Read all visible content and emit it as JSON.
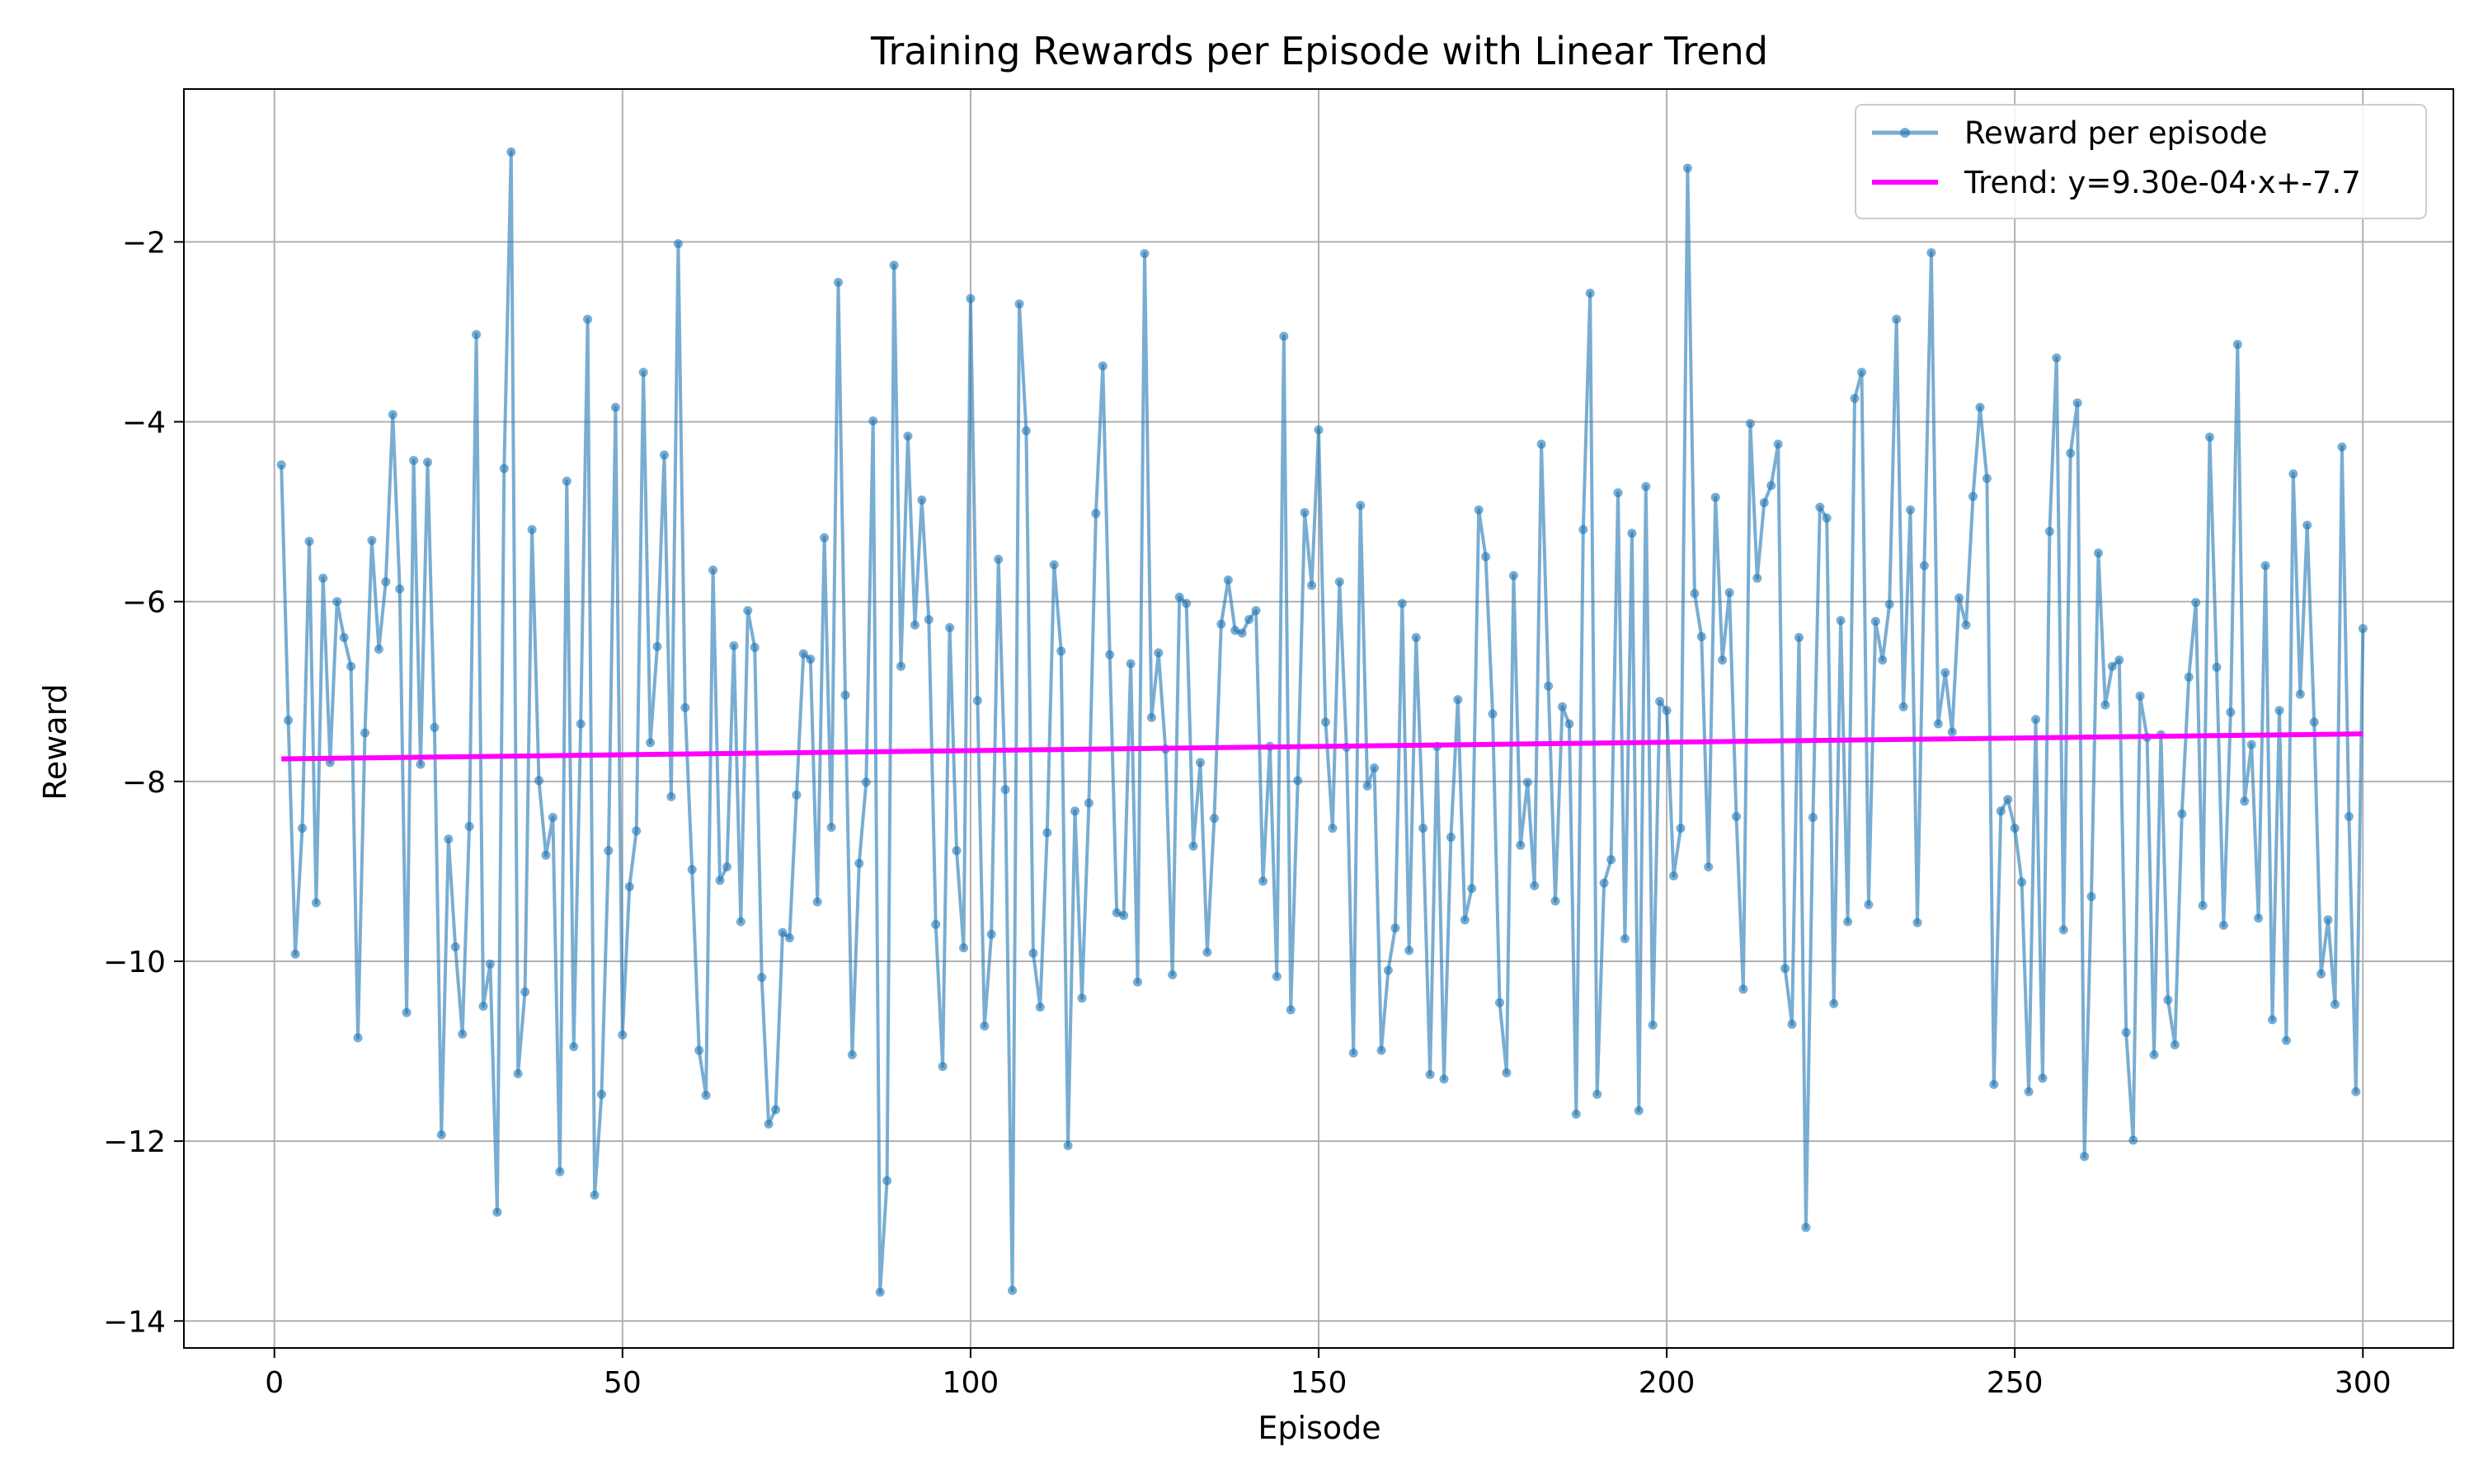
{
  "chart_data": {
    "type": "line",
    "title": "Training Rewards per Episode with Linear Trend",
    "xlabel": "Episode",
    "ylabel": "Reward",
    "xlim": [
      -13,
      313
    ],
    "ylim": [
      -14.3,
      -0.3
    ],
    "x_ticks": [
      0,
      50,
      100,
      150,
      200,
      250,
      300
    ],
    "y_ticks": [
      -14,
      -12,
      -10,
      -8,
      -6,
      -4,
      -2
    ],
    "grid": true,
    "legend_position": "top-right",
    "series": [
      {
        "name": "Reward per episode",
        "kind": "line-with-markers",
        "color": "#1f77b4",
        "x_start": 1,
        "x_step": 1,
        "values": [
          -4.48,
          -7.32,
          -9.92,
          -8.52,
          -5.33,
          -9.35,
          -5.74,
          -7.79,
          -6.0,
          -6.4,
          -6.72,
          -10.85,
          -7.46,
          -5.32,
          -6.53,
          -5.78,
          -3.92,
          -5.86,
          -10.57,
          -4.43,
          -7.81,
          -4.45,
          -7.4,
          -11.93,
          -8.64,
          -9.84,
          -10.81,
          -8.5,
          -3.03,
          -10.5,
          -10.03,
          -12.79,
          -4.52,
          -1.0,
          -11.25,
          -10.34,
          -5.2,
          -7.99,
          -8.82,
          -8.4,
          -12.34,
          -4.66,
          -10.95,
          -7.36,
          -2.86,
          -12.6,
          -11.48,
          -8.77,
          -3.84,
          -10.82,
          -9.17,
          -8.55,
          -3.45,
          -7.57,
          -6.5,
          -4.37,
          -8.17,
          -2.02,
          -7.18,
          -8.98,
          -10.99,
          -11.49,
          -5.65,
          -9.1,
          -8.95,
          -6.49,
          -9.56,
          -6.1,
          -6.51,
          -10.18,
          -11.81,
          -11.65,
          -9.68,
          -9.74,
          -8.15,
          -6.58,
          -6.64,
          -9.34,
          -5.29,
          -8.51,
          -2.45,
          -7.04,
          -11.04,
          -8.91,
          -8.01,
          -3.99,
          -13.68,
          -12.44,
          -2.26,
          -6.72,
          -4.16,
          -6.26,
          -4.87,
          -6.2,
          -9.59,
          -11.17,
          -6.29,
          -8.77,
          -9.85,
          -2.63,
          -7.1,
          -10.72,
          -9.7,
          -5.53,
          -8.09,
          -13.66,
          -2.69,
          -4.1,
          -9.91,
          -10.51,
          -8.57,
          -5.59,
          -6.55,
          -12.05,
          -8.33,
          -10.41,
          -8.24,
          -5.02,
          -3.38,
          -6.59,
          -9.46,
          -9.49,
          -6.69,
          -10.23,
          -2.13,
          -7.29,
          -6.57,
          -7.64,
          -10.15,
          -5.95,
          -6.02,
          -8.72,
          -7.79,
          -9.9,
          -8.41,
          -6.25,
          -5.76,
          -6.32,
          -6.35,
          -6.2,
          -6.1,
          -9.11,
          -7.61,
          -10.17,
          -3.05,
          -10.54,
          -7.99,
          -5.01,
          -5.82,
          -4.09,
          -7.34,
          -8.52,
          -5.78,
          -7.62,
          -11.02,
          -4.93,
          -8.05,
          -7.85,
          -10.99,
          -10.1,
          -9.63,
          -6.02,
          -9.88,
          -6.4,
          -8.52,
          -11.26,
          -7.61,
          -11.31,
          -8.62,
          -7.09,
          -9.54,
          -9.19,
          -4.98,
          -5.5,
          -7.25,
          -10.46,
          -11.24,
          -5.71,
          -8.71,
          -8.01,
          -9.16,
          -4.25,
          -6.94,
          -9.33,
          -7.17,
          -7.36,
          -11.7,
          -5.2,
          -2.57,
          -11.48,
          -9.13,
          -8.87,
          -4.79,
          -9.75,
          -5.24,
          -11.66,
          -4.72,
          -10.71,
          -7.11,
          -7.21,
          -9.05,
          -8.52,
          -1.18,
          -5.91,
          -6.39,
          -8.95,
          -4.84,
          -6.65,
          -5.9,
          -8.39,
          -10.31,
          -4.02,
          -5.74,
          -4.9,
          -4.71,
          -4.25,
          -10.08,
          -10.7,
          -6.4,
          -12.96,
          -8.4,
          -4.95,
          -5.07,
          -10.47,
          -6.21,
          -9.56,
          -3.74,
          -3.45,
          -9.37,
          -6.22,
          -6.65,
          -6.03,
          -2.86,
          -7.17,
          -4.98,
          -9.57,
          -5.6,
          -2.12,
          -7.36,
          -6.79,
          -7.45,
          -5.96,
          -6.26,
          -4.83,
          -3.84,
          -4.63,
          -11.37,
          -8.33,
          -8.2,
          -8.52,
          -9.12,
          -11.45,
          -7.31,
          -11.3,
          -5.22,
          -3.29,
          -9.65,
          -4.35,
          -3.79,
          -12.17,
          -9.28,
          -5.46,
          -7.15,
          -6.72,
          -6.65,
          -10.79,
          -11.99,
          -7.05,
          -7.51,
          -11.04,
          -7.48,
          -10.43,
          -10.93,
          -8.36,
          -6.84,
          -6.01,
          -9.38,
          -4.17,
          -6.73,
          -9.6,
          -7.23,
          -3.14,
          -8.22,
          -7.59,
          -9.52,
          -5.6,
          -10.65,
          -7.21,
          -10.88,
          -4.58,
          -7.03,
          -5.15,
          -7.34,
          -10.14,
          -9.54,
          -10.48,
          -4.28,
          -8.39,
          -11.45,
          -6.3
        ]
      },
      {
        "name": "Trend: y=9.30e-04·x+-7.7",
        "kind": "line",
        "color": "#ff00ff",
        "slope": 0.00093,
        "intercept": -7.75,
        "x_range": [
          1,
          300
        ]
      }
    ]
  }
}
